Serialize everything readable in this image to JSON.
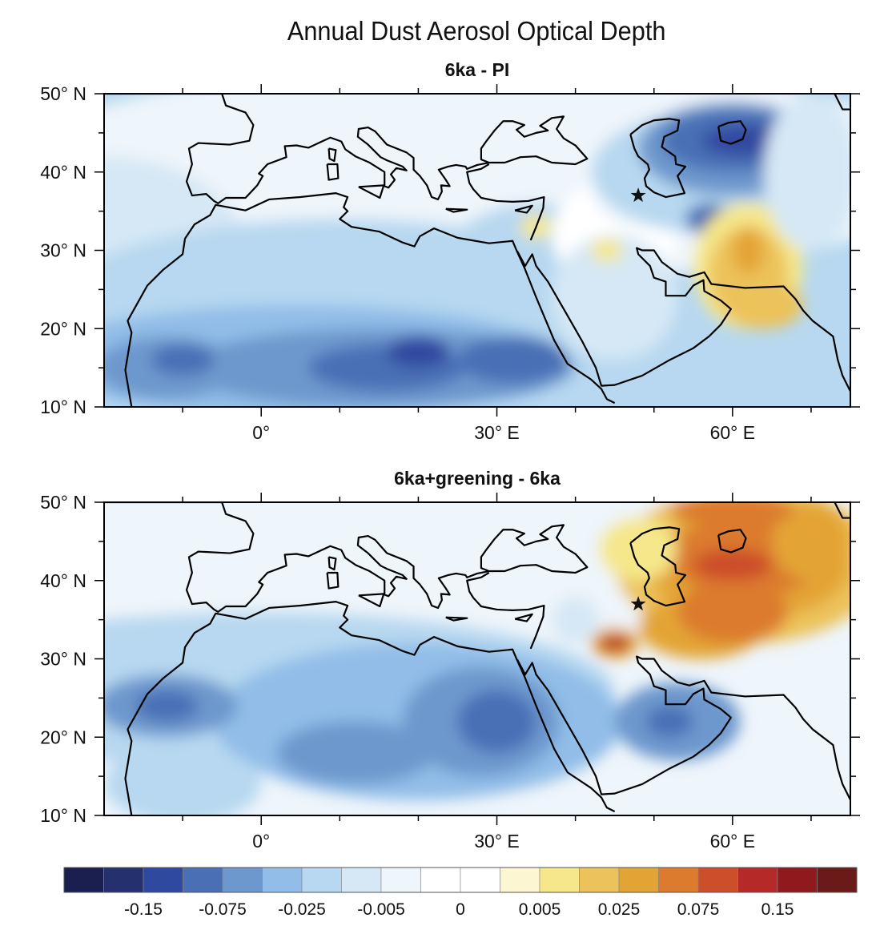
{
  "title": "Annual Dust Aerosol Optical Depth",
  "panels": [
    {
      "subtitle": "6ka - PI"
    },
    {
      "subtitle": "6ka+greening - 6ka"
    }
  ],
  "map": {
    "projection": "cylindrical equidistant",
    "lon_range": [
      -20,
      75
    ],
    "lat_range": [
      10,
      50
    ],
    "lon_tick_labels": [
      {
        "lon": 0,
        "label": "0°"
      },
      {
        "lon": 30,
        "label": "30° E"
      },
      {
        "lon": 60,
        "label": "60° E"
      }
    ],
    "lat_tick_labels": [
      {
        "lat": 50,
        "label": "50° N"
      },
      {
        "lat": 40,
        "label": "40° N"
      },
      {
        "lat": 30,
        "label": "30° N"
      },
      {
        "lat": 20,
        "label": "20° N"
      },
      {
        "lat": 10,
        "label": "10° N"
      }
    ],
    "marker": {
      "symbol": "star",
      "lon": 48,
      "lat": 37
    }
  },
  "colorbar": {
    "colors": [
      "#1b1f4f",
      "#25316f",
      "#3049a0",
      "#4a6fb5",
      "#6d98cd",
      "#91bde8",
      "#b7d8f0",
      "#d6e8f5",
      "#eef5fb",
      "#ffffff",
      "#ffffff",
      "#fdf6d2",
      "#f5e78a",
      "#ecc25a",
      "#e3a436",
      "#dc7a2d",
      "#cc4e2a",
      "#b62929",
      "#8e1a1e",
      "#6b1a1a"
    ],
    "labels": [
      "-0.15",
      "-0.075",
      "-0.025",
      "-0.005",
      "0",
      "0.005",
      "0.025",
      "0.075",
      "0.15"
    ]
  }
}
